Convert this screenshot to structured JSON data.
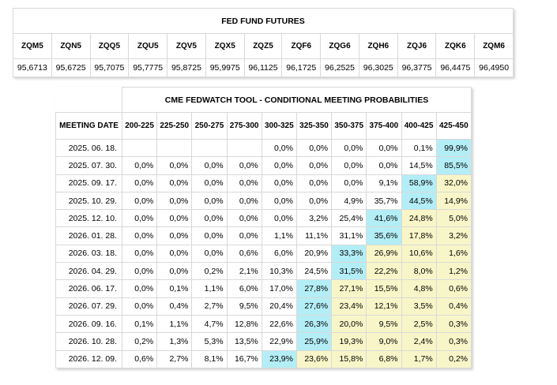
{
  "futures": {
    "title": "FED FUND FUTURES",
    "codes": [
      "ZQM5",
      "ZQN5",
      "ZQQ5",
      "ZQU5",
      "ZQV5",
      "ZQX5",
      "ZQZ5",
      "ZQF6",
      "ZQG6",
      "ZQH6",
      "ZQJ6",
      "ZQK6",
      "ZQM6"
    ],
    "prices": [
      "95,6713",
      "95,6725",
      "95,7075",
      "95,7775",
      "95,8725",
      "95,9975",
      "96,1125",
      "96,1725",
      "96,2525",
      "96,3025",
      "96,3775",
      "96,4475",
      "96,4950"
    ]
  },
  "fedwatch": {
    "title": "CME FEDWATCH TOOL - CONDITIONAL MEETING PROBABILITIES",
    "date_header": "MEETING DATE",
    "ranges": [
      "200-225",
      "225-250",
      "250-275",
      "275-300",
      "300-325",
      "325-350",
      "350-375",
      "375-400",
      "400-425",
      "425-450"
    ],
    "rows": [
      {
        "date": "2025. 06. 18.",
        "values": [
          "",
          "",
          "",
          "",
          "0,0%",
          "0,0%",
          "0,0%",
          "0,0%",
          "0,1%",
          "99,9%"
        ],
        "max": 9,
        "yellow_from": 10
      },
      {
        "date": "2025. 07. 30.",
        "values": [
          "0,0%",
          "0,0%",
          "0,0%",
          "0,0%",
          "0,0%",
          "0,0%",
          "0,0%",
          "0,0%",
          "14,5%",
          "85,5%"
        ],
        "max": 9,
        "yellow_from": 10
      },
      {
        "date": "2025. 09. 17.",
        "values": [
          "0,0%",
          "0,0%",
          "0,0%",
          "0,0%",
          "0,0%",
          "0,0%",
          "0,0%",
          "9,1%",
          "58,9%",
          "32,0%"
        ],
        "max": 8,
        "yellow_from": 9
      },
      {
        "date": "2025. 10. 29.",
        "values": [
          "0,0%",
          "0,0%",
          "0,0%",
          "0,0%",
          "0,0%",
          "0,0%",
          "4,9%",
          "35,7%",
          "44,5%",
          "14,9%"
        ],
        "max": 8,
        "yellow_from": 9
      },
      {
        "date": "2025. 12. 10.",
        "values": [
          "0,0%",
          "0,0%",
          "0,0%",
          "0,0%",
          "0,0%",
          "3,2%",
          "25,4%",
          "41,6%",
          "24,8%",
          "5,0%"
        ],
        "max": 7,
        "yellow_from": 8
      },
      {
        "date": "2026. 01. 28.",
        "values": [
          "0,0%",
          "0,0%",
          "0,0%",
          "0,0%",
          "1,1%",
          "11,1%",
          "31,1%",
          "35,6%",
          "17,8%",
          "3,2%"
        ],
        "max": 7,
        "yellow_from": 8
      },
      {
        "date": "2026. 03. 18.",
        "values": [
          "0,0%",
          "0,0%",
          "0,0%",
          "0,6%",
          "6,0%",
          "20,9%",
          "33,3%",
          "26,9%",
          "10,6%",
          "1,6%"
        ],
        "max": 6,
        "yellow_from": 7
      },
      {
        "date": "2026. 04. 29.",
        "values": [
          "0,0%",
          "0,0%",
          "0,2%",
          "2,1%",
          "10,3%",
          "24,5%",
          "31,5%",
          "22,2%",
          "8,0%",
          "1,2%"
        ],
        "max": 6,
        "yellow_from": 7
      },
      {
        "date": "2026. 06. 17.",
        "values": [
          "0,0%",
          "0,1%",
          "1,1%",
          "6,0%",
          "17,0%",
          "27,8%",
          "27,1%",
          "15,5%",
          "4,8%",
          "0,6%"
        ],
        "max": 5,
        "yellow_from": 6
      },
      {
        "date": "2026. 07. 29.",
        "values": [
          "0,0%",
          "0,4%",
          "2,7%",
          "9,5%",
          "20,4%",
          "27,6%",
          "23,4%",
          "12,1%",
          "3,5%",
          "0,4%"
        ],
        "max": 5,
        "yellow_from": 6
      },
      {
        "date": "2026. 09. 16.",
        "values": [
          "0,1%",
          "1,1%",
          "4,7%",
          "12,8%",
          "22,6%",
          "26,3%",
          "20,0%",
          "9,5%",
          "2,5%",
          "0,3%"
        ],
        "max": 5,
        "yellow_from": 6
      },
      {
        "date": "2026. 10. 28.",
        "values": [
          "0,2%",
          "1,3%",
          "5,3%",
          "13,5%",
          "22,9%",
          "25,9%",
          "19,3%",
          "9,0%",
          "2,4%",
          "0,3%"
        ],
        "max": 5,
        "yellow_from": 6
      },
      {
        "date": "2026. 12. 09.",
        "values": [
          "0,6%",
          "2,7%",
          "8,1%",
          "16,7%",
          "23,9%",
          "23,6%",
          "15,8%",
          "6,8%",
          "1,7%",
          "0,2%"
        ],
        "max": 4,
        "yellow_from": 5
      }
    ]
  },
  "colors": {
    "max_highlight": "#b3eef6",
    "above_max_highlight": "#f8f6c8"
  }
}
